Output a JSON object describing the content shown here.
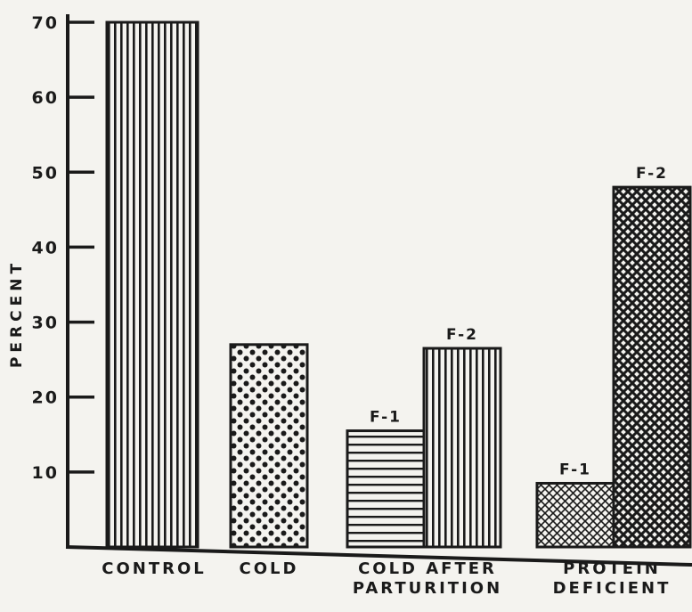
{
  "chart_data": {
    "type": "bar",
    "title": "",
    "xlabel": "",
    "ylabel": "PERCENT",
    "ylim": [
      0,
      70
    ],
    "yticks": [
      10,
      20,
      30,
      40,
      50,
      60,
      70
    ],
    "groups": [
      {
        "label_lines": [
          "CONTROL"
        ],
        "bars": [
          {
            "label": "",
            "value": 70,
            "pattern": "vertical-lines"
          }
        ]
      },
      {
        "label_lines": [
          "COLD"
        ],
        "bars": [
          {
            "label": "",
            "value": 27,
            "pattern": "dots"
          }
        ]
      },
      {
        "label_lines": [
          "COLD AFTER",
          "PARTURITION"
        ],
        "bars": [
          {
            "label": "F-1",
            "value": 15.5,
            "pattern": "horizontal-lines"
          },
          {
            "label": "F-2",
            "value": 26.5,
            "pattern": "vertical-lines"
          }
        ]
      },
      {
        "label_lines": [
          "PROTEIN",
          "DEFICIENT"
        ],
        "bars": [
          {
            "label": "F-1",
            "value": 8.5,
            "pattern": "crosshatch-light"
          },
          {
            "label": "F-2",
            "value": 48,
            "pattern": "crosshatch-dark"
          }
        ]
      }
    ],
    "grid": false,
    "legend": "none",
    "colors": {
      "ink": "#1a1a1a",
      "paper": "#f4f3ef"
    }
  }
}
